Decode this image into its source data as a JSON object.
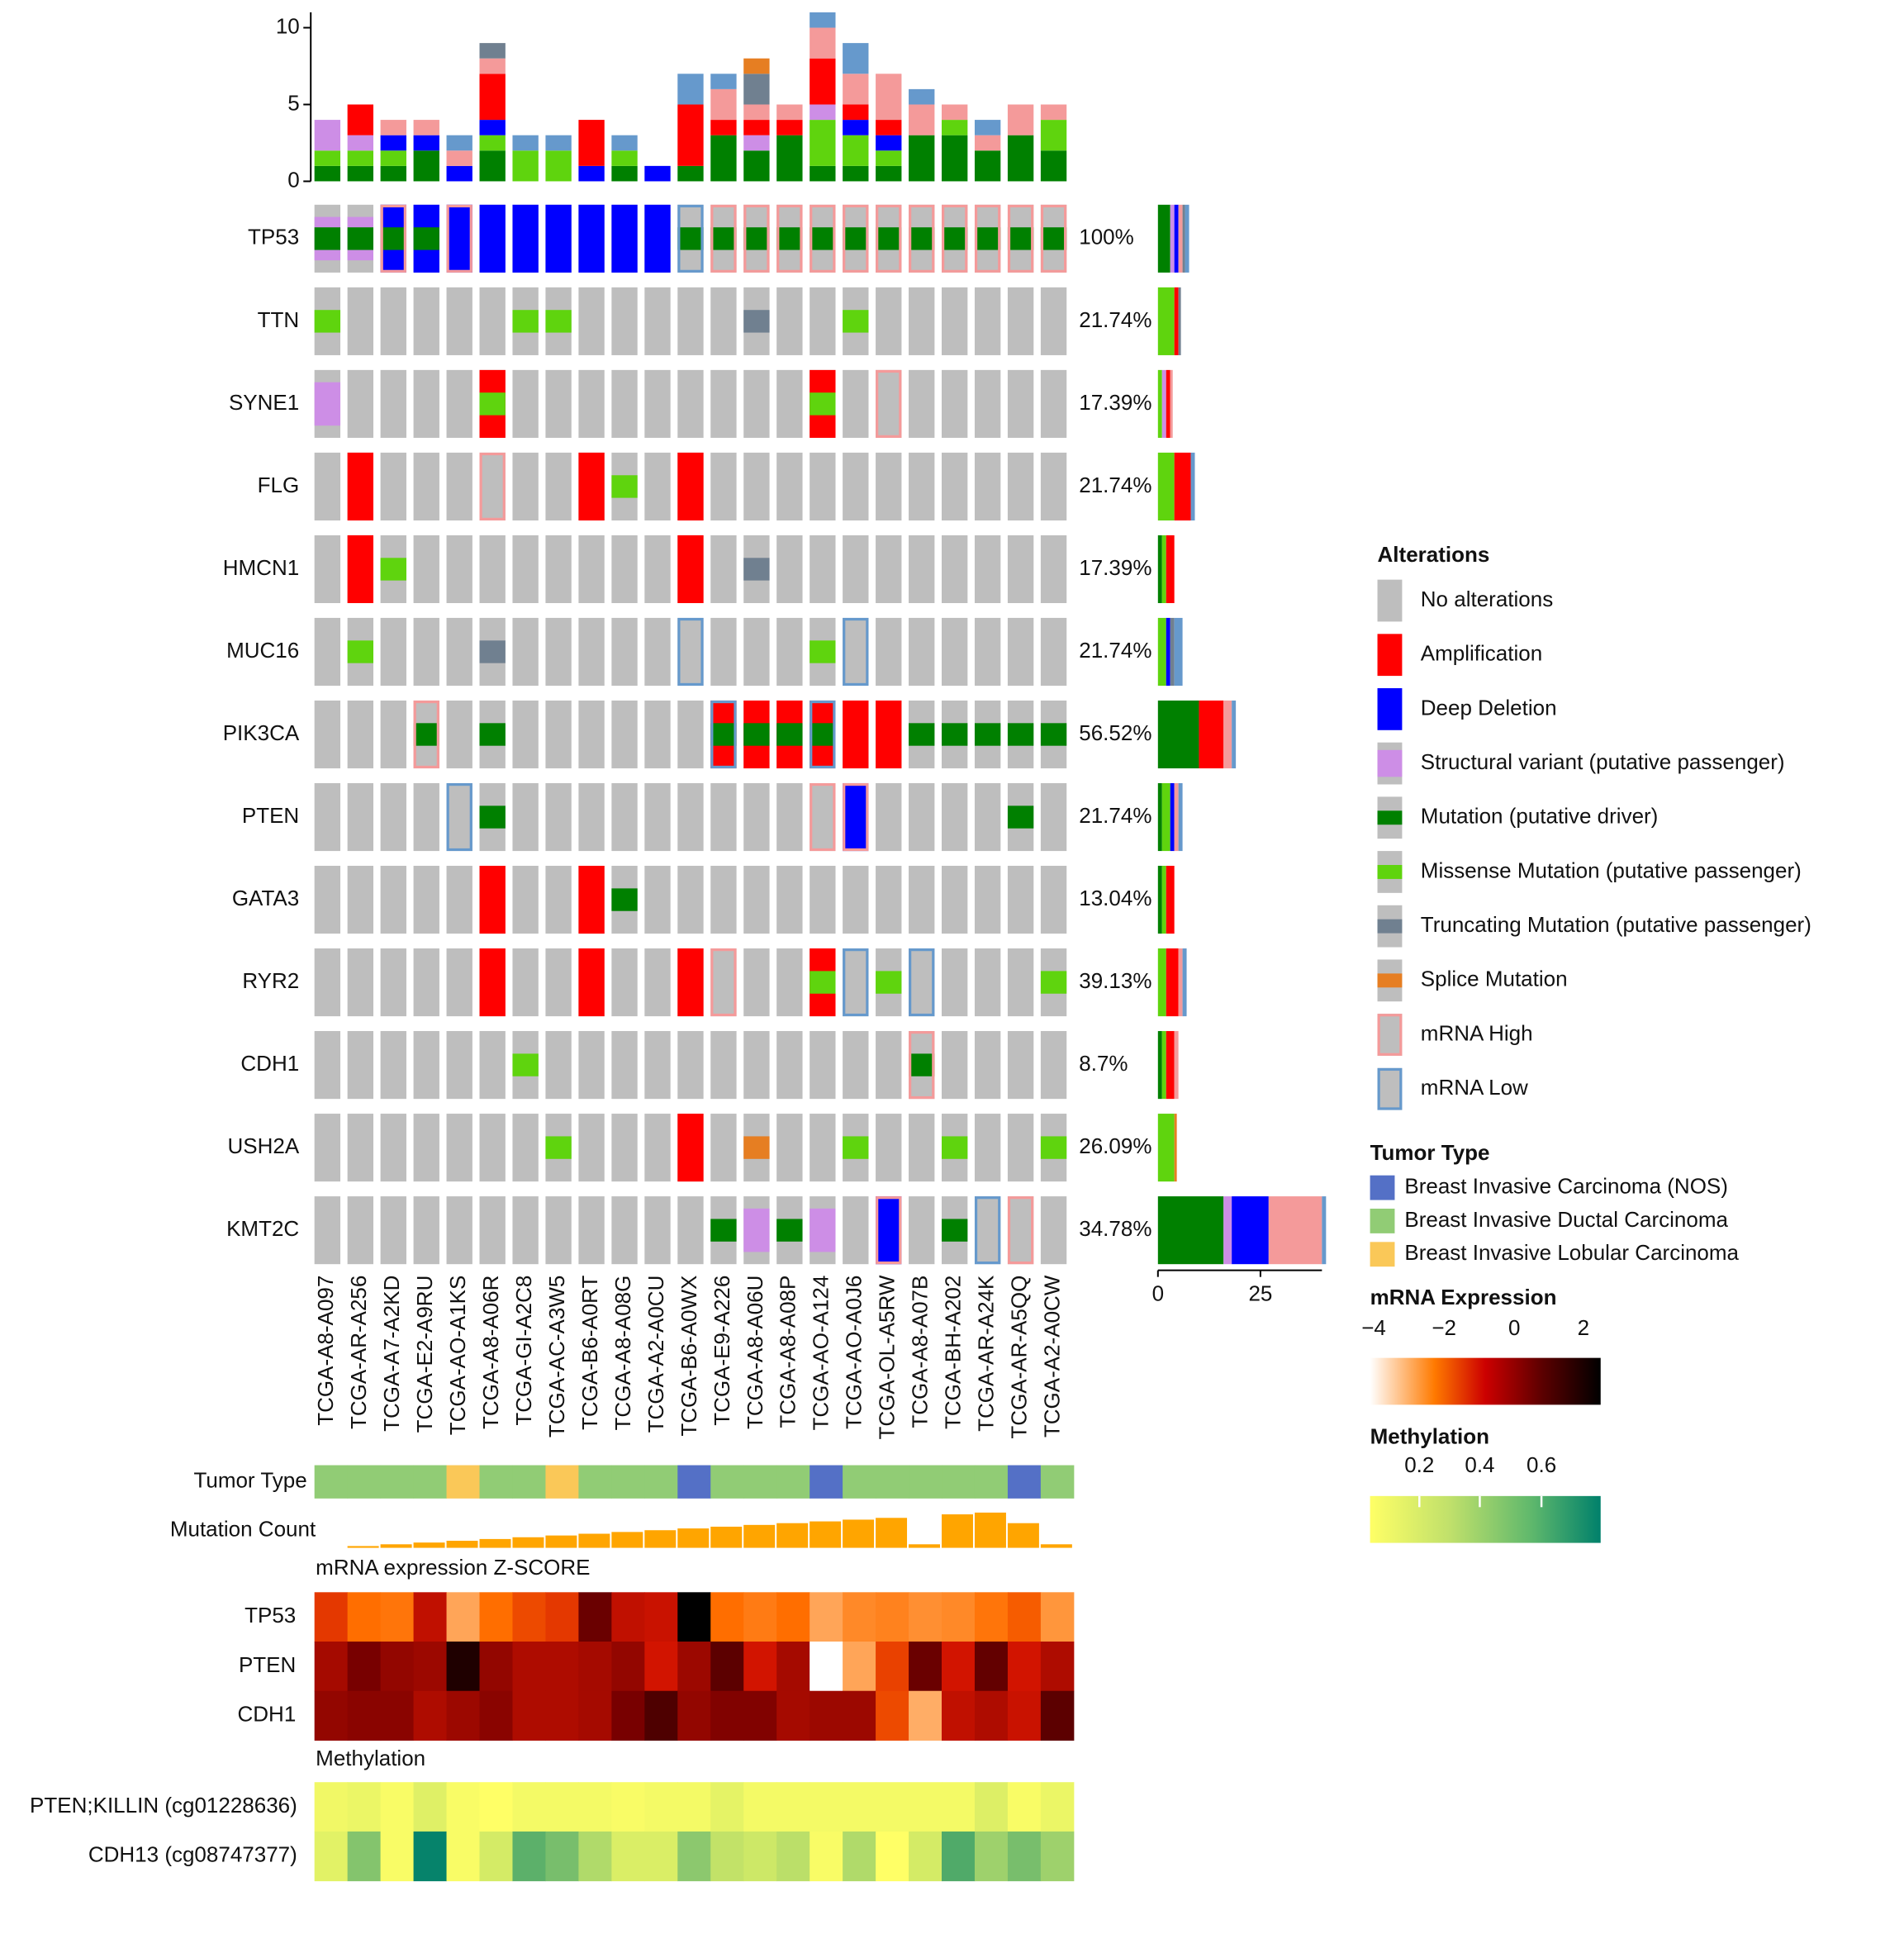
{
  "colors": {
    "none": "#bebebe",
    "amp": "#ff0000",
    "del": "#0000ff",
    "sv": "#cd8ee6",
    "drv": "#008000",
    "mis": "#5fd40e",
    "trunc": "#708090",
    "splice": "#e67e22",
    "high": "#f49a9a",
    "low": "#6699cc",
    "nos": "#5470c6",
    "ductal": "#91cc75",
    "lobular": "#fac858",
    "count": "#ffa500"
  },
  "chart_data": {
    "type": "oncoprint",
    "samples": [
      "TCGA-A8-A097",
      "TCGA-AR-A256",
      "TCGA-A7-A2KD",
      "TCGA-E2-A9RU",
      "TCGA-AO-A1KS",
      "TCGA-A8-A06R",
      "TCGA-GI-A2C8",
      "TCGA-AC-A3W5",
      "TCGA-B6-A0RT",
      "TCGA-A8-A08G",
      "TCGA-A2-A0CU",
      "TCGA-B6-A0WX",
      "TCGA-E9-A226",
      "TCGA-A8-A06U",
      "TCGA-A8-A08P",
      "TCGA-AO-A124",
      "TCGA-AO-A0J6",
      "TCGA-OL-A5RW",
      "TCGA-A8-A07B",
      "TCGA-BH-A202",
      "TCGA-AR-A24K",
      "TCGA-AR-A5QQ",
      "TCGA-A2-A0CW"
    ],
    "genes": [
      {
        "name": "TP53",
        "pct": "100%",
        "cells": [
          {
            "mut": "drv",
            "sv": 1
          },
          {
            "mut": "drv",
            "sv": 1
          },
          {
            "cna": "del",
            "mut": "drv",
            "expr": "high"
          },
          {
            "cna": "del",
            "mut": "drv"
          },
          {
            "cna": "del",
            "expr": "high"
          },
          {
            "cna": "del"
          },
          {
            "cna": "del"
          },
          {
            "cna": "del"
          },
          {
            "cna": "del"
          },
          {
            "cna": "del"
          },
          {
            "cna": "del"
          },
          {
            "mut": "drv",
            "expr": "low"
          },
          {
            "mut": "drv",
            "expr": "high"
          },
          {
            "mut": "drv",
            "expr": "high"
          },
          {
            "mut": "drv",
            "expr": "high"
          },
          {
            "mut": "drv",
            "expr": "high"
          },
          {
            "mut": "drv",
            "expr": "high"
          },
          {
            "mut": "drv",
            "expr": "high"
          },
          {
            "mut": "drv",
            "expr": "high"
          },
          {
            "mut": "drv",
            "expr": "high"
          },
          {
            "mut": "drv",
            "expr": "high"
          },
          {
            "mut": "drv",
            "expr": "high"
          },
          {
            "mut": "drv",
            "expr": "high"
          }
        ]
      },
      {
        "name": "TTN",
        "pct": "21.74%",
        "cells": [
          {
            "mut": "mis"
          },
          {},
          {},
          {},
          {},
          {},
          {
            "mut": "mis"
          },
          {
            "mut": "mis"
          },
          {},
          {},
          {},
          {},
          {},
          {
            "mut": "trunc"
          },
          {},
          {},
          {
            "mut": "mis"
          },
          {},
          {},
          {},
          {},
          {},
          {}
        ]
      },
      {
        "name": "SYNE1",
        "pct": "17.39%",
        "cells": [
          {
            "sv": 1
          },
          {},
          {},
          {},
          {},
          {
            "cna": "amp",
            "mut": "mis"
          },
          {},
          {},
          {},
          {},
          {},
          {},
          {},
          {},
          {},
          {
            "cna": "amp",
            "mut": "mis"
          },
          {},
          {
            "expr": "high"
          },
          {},
          {},
          {},
          {},
          {}
        ]
      },
      {
        "name": "FLG",
        "pct": "21.74%",
        "cells": [
          {},
          {
            "cna": "amp"
          },
          {},
          {},
          {},
          {
            "expr": "high"
          },
          {},
          {},
          {
            "cna": "amp"
          },
          {
            "mut": "mis"
          },
          {},
          {
            "cna": "amp"
          },
          {},
          {},
          {},
          {},
          {},
          {},
          {},
          {},
          {},
          {},
          {}
        ]
      },
      {
        "name": "HMCN1",
        "pct": "17.39%",
        "cells": [
          {},
          {
            "cna": "amp"
          },
          {
            "mut": "mis"
          },
          {},
          {},
          {},
          {},
          {},
          {},
          {},
          {},
          {
            "cna": "amp"
          },
          {},
          {
            "mut": "trunc"
          },
          {},
          {},
          {},
          {},
          {},
          {},
          {},
          {},
          {}
        ]
      },
      {
        "name": "MUC16",
        "pct": "21.74%",
        "cells": [
          {},
          {
            "mut": "mis"
          },
          {},
          {},
          {},
          {
            "mut": "trunc"
          },
          {},
          {},
          {},
          {},
          {},
          {
            "expr": "low"
          },
          {},
          {},
          {},
          {
            "mut": "mis"
          },
          {
            "expr": "low"
          },
          {},
          {},
          {},
          {},
          {},
          {}
        ]
      },
      {
        "name": "PIK3CA",
        "pct": "56.52%",
        "cells": [
          {},
          {},
          {},
          {
            "mut": "drv",
            "expr": "high"
          },
          {},
          {
            "mut": "drv"
          },
          {},
          {},
          {},
          {},
          {},
          {},
          {
            "cna": "amp",
            "mut": "drv",
            "expr": "low"
          },
          {
            "cna": "amp",
            "mut": "drv"
          },
          {
            "cna": "amp",
            "mut": "drv"
          },
          {
            "cna": "amp",
            "mut": "drv",
            "expr": "low"
          },
          {
            "cna": "amp"
          },
          {
            "cna": "amp"
          },
          {
            "mut": "drv"
          },
          {
            "mut": "drv"
          },
          {
            "mut": "drv"
          },
          {
            "mut": "drv"
          },
          {
            "mut": "drv"
          }
        ]
      },
      {
        "name": "PTEN",
        "pct": "21.74%",
        "cells": [
          {},
          {},
          {},
          {},
          {
            "expr": "low"
          },
          {
            "mut": "drv"
          },
          {},
          {},
          {},
          {},
          {},
          {},
          {},
          {},
          {},
          {
            "expr": "high"
          },
          {
            "cna": "del",
            "expr": "high"
          },
          {},
          {},
          {},
          {},
          {
            "mut": "drv"
          },
          {}
        ]
      },
      {
        "name": "GATA3",
        "pct": "13.04%",
        "cells": [
          {},
          {},
          {},
          {},
          {},
          {
            "cna": "amp"
          },
          {},
          {},
          {
            "cna": "amp"
          },
          {
            "mut": "drv"
          },
          {},
          {},
          {},
          {},
          {},
          {},
          {},
          {},
          {},
          {},
          {},
          {},
          {}
        ]
      },
      {
        "name": "RYR2",
        "pct": "39.13%",
        "cells": [
          {},
          {},
          {},
          {},
          {},
          {
            "cna": "amp"
          },
          {},
          {},
          {
            "cna": "amp"
          },
          {},
          {},
          {
            "cna": "amp"
          },
          {
            "expr": "high"
          },
          {},
          {},
          {
            "cna": "amp",
            "mut": "mis"
          },
          {
            "expr": "low"
          },
          {
            "mut": "mis"
          },
          {
            "expr": "low"
          },
          {},
          {},
          {},
          {
            "mut": "mis"
          }
        ]
      },
      {
        "name": "CDH1",
        "pct": "8.7%",
        "cells": [
          {},
          {},
          {},
          {},
          {},
          {},
          {
            "mut": "mis"
          },
          {},
          {},
          {},
          {},
          {},
          {},
          {},
          {},
          {},
          {},
          {},
          {
            "mut": "drv",
            "expr": "high"
          },
          {},
          {},
          {},
          {}
        ]
      },
      {
        "name": "USH2A",
        "pct": "26.09%",
        "cells": [
          {},
          {},
          {},
          {},
          {},
          {},
          {},
          {
            "mut": "mis"
          },
          {},
          {},
          {},
          {
            "cna": "amp"
          },
          {},
          {
            "mut": "splice"
          },
          {},
          {},
          {
            "mut": "mis"
          },
          {},
          {},
          {
            "mut": "mis"
          },
          {},
          {},
          {
            "mut": "mis"
          }
        ]
      },
      {
        "name": "KMT2C",
        "pct": "34.78%",
        "cells": [
          {},
          {},
          {},
          {},
          {},
          {},
          {},
          {},
          {},
          {},
          {},
          {},
          {
            "mut": "drv"
          },
          {
            "sv": 1
          },
          {
            "mut": "drv"
          },
          {
            "sv": 1
          },
          {},
          {
            "cna": "del",
            "expr": "high"
          },
          {},
          {
            "mut": "drv"
          },
          {
            "expr": "low"
          },
          {
            "expr": "high"
          },
          {}
        ]
      }
    ],
    "top_bar": {
      "ylim": [
        0,
        11
      ],
      "yticks": [
        0,
        5,
        10
      ],
      "stack_order": [
        "drv",
        "mis",
        "sv",
        "del",
        "amp",
        "high",
        "trunc",
        "splice",
        "low"
      ],
      "values": [
        {
          "drv": 1,
          "mis": 1,
          "sv": 2
        },
        {
          "drv": 1,
          "mis": 1,
          "sv": 1,
          "amp": 2
        },
        {
          "drv": 1,
          "mis": 1,
          "del": 1,
          "high": 1
        },
        {
          "drv": 2,
          "del": 1,
          "high": 1
        },
        {
          "del": 1,
          "high": 1,
          "low": 1
        },
        {
          "drv": 2,
          "mis": 1,
          "del": 1,
          "amp": 3,
          "high": 1,
          "trunc": 1
        },
        {
          "mis": 2,
          "low": 1
        },
        {
          "mis": 2,
          "low": 1
        },
        {
          "amp": 3,
          "del": 1
        },
        {
          "drv": 1,
          "mis": 1,
          "low": 1
        },
        {
          "del": 1
        },
        {
          "drv": 1,
          "amp": 4,
          "low": 2
        },
        {
          "drv": 3,
          "amp": 1,
          "high": 2,
          "low": 1
        },
        {
          "drv": 2,
          "sv": 1,
          "amp": 1,
          "high": 1,
          "trunc": 2,
          "splice": 1
        },
        {
          "drv": 3,
          "amp": 1,
          "high": 1
        },
        {
          "drv": 1,
          "mis": 3,
          "sv": 1,
          "amp": 3,
          "high": 2,
          "low": 1
        },
        {
          "drv": 1,
          "mis": 2,
          "amp": 1,
          "del": 1,
          "high": 2,
          "low": 2
        },
        {
          "drv": 1,
          "mis": 1,
          "amp": 1,
          "del": 1,
          "high": 3
        },
        {
          "drv": 3,
          "high": 2,
          "low": 1
        },
        {
          "drv": 3,
          "mis": 1,
          "high": 1
        },
        {
          "drv": 2,
          "high": 1,
          "low": 1
        },
        {
          "drv": 3,
          "high": 2
        },
        {
          "drv": 2,
          "mis": 2,
          "high": 1
        }
      ]
    },
    "side_bar": {
      "xlim": [
        0,
        40
      ],
      "xticks": [
        0,
        25
      ],
      "values": [
        {
          "drv": 3,
          "sv": 1,
          "del": 1,
          "high": 1,
          "trunc": 0.6,
          "low": 1
        },
        {
          "mis": 4,
          "amp": 1,
          "trunc": 0.6
        },
        {
          "sv": 1,
          "mis": 1,
          "amp": 1,
          "high": 0.6
        },
        {
          "low": 1,
          "mis": 4,
          "amp": 4
        },
        {
          "drv": 1,
          "mis": 1,
          "amp": 2
        },
        {
          "del": 1,
          "mis": 2,
          "trunc": 1,
          "low": 2
        },
        {
          "drv": 10,
          "high": 2,
          "low": 1,
          "amp": 6
        },
        {
          "mis": 2,
          "high": 1,
          "low": 1,
          "del": 1,
          "drv": 1
        },
        {
          "mis": 1,
          "amp": 2,
          "drv": 1
        },
        {
          "mis": 2,
          "high": 1,
          "low": 1,
          "amp": 3
        },
        {
          "mis": 1,
          "high": 1,
          "drv": 1,
          "amp": 2
        },
        {
          "mis": 4,
          "splice": 0.6
        },
        {
          "drv": 16,
          "sv": 2,
          "del": 9,
          "high": 13,
          "low": 1
        }
      ]
    },
    "tracks": {
      "tumor_type_label": "Tumor Type",
      "tumor_type": [
        "ductal",
        "ductal",
        "ductal",
        "ductal",
        "lobular",
        "ductal",
        "ductal",
        "lobular",
        "ductal",
        "ductal",
        "ductal",
        "nos",
        "ductal",
        "ductal",
        "ductal",
        "nos",
        "ductal",
        "ductal",
        "ductal",
        "ductal",
        "ductal",
        "nos",
        "ductal"
      ],
      "mutation_count_label": "Mutation Count",
      "mutation_count": [
        0,
        1,
        2,
        3,
        4,
        5,
        6,
        7,
        8,
        9,
        10,
        11,
        12,
        13,
        14,
        15,
        16,
        17,
        2,
        19,
        20,
        14,
        2
      ],
      "mutation_count_max": 21
    },
    "mrna": {
      "title": "mRNA expression Z-SCORE",
      "genes": [
        "TP53",
        "PTEN",
        "CDH1"
      ],
      "z": [
        [
          -1.4,
          -2.0,
          -2.1,
          -0.8,
          -2.8,
          -2.0,
          -1.6,
          -1.4,
          0.2,
          -0.8,
          -0.9,
          2.6,
          -2.0,
          -2.2,
          -2.0,
          -2.8,
          -2.4,
          -2.3,
          -2.5,
          -2.4,
          -2.1,
          -1.8,
          -2.6
        ],
        [
          -0.5,
          0.0,
          -0.3,
          -0.4,
          1.6,
          -0.3,
          -0.6,
          -0.6,
          -0.5,
          -0.3,
          -1.0,
          -0.4,
          0.4,
          -1.0,
          -0.5,
          -4.0,
          -2.8,
          -1.5,
          0.2,
          -1.0,
          0.3,
          -1.0,
          -0.6
        ],
        [
          -0.3,
          -0.2,
          -0.2,
          -0.6,
          -0.4,
          -0.2,
          -0.6,
          -0.6,
          -0.5,
          0.0,
          0.6,
          -0.3,
          -0.1,
          -0.1,
          -0.5,
          -0.4,
          -0.4,
          -1.6,
          -2.9,
          -0.8,
          -0.6,
          -0.9,
          0.4
        ]
      ]
    },
    "methylation": {
      "title": "Methylation",
      "probes": [
        "PTEN;KILLIN (cg01228636)",
        "CDH13 (cg08747377)"
      ],
      "beta": [
        [
          0.1,
          0.12,
          0.07,
          0.16,
          0.07,
          0.05,
          0.09,
          0.09,
          0.09,
          0.07,
          0.09,
          0.09,
          0.14,
          0.09,
          0.09,
          0.09,
          0.09,
          0.09,
          0.09,
          0.09,
          0.17,
          0.07,
          0.12
        ],
        [
          0.15,
          0.42,
          0.07,
          0.78,
          0.07,
          0.2,
          0.52,
          0.45,
          0.3,
          0.18,
          0.18,
          0.4,
          0.25,
          0.22,
          0.27,
          0.07,
          0.3,
          0.05,
          0.2,
          0.55,
          0.35,
          0.45,
          0.35
        ]
      ]
    },
    "legend": {
      "alterations_title": "Alterations",
      "alterations": [
        {
          "key": "none",
          "label": "No alterations"
        },
        {
          "key": "amp",
          "label": "Amplification"
        },
        {
          "key": "del",
          "label": "Deep Deletion"
        },
        {
          "key": "sv",
          "label": "Structural variant (putative passenger)"
        },
        {
          "key": "drv",
          "label": "Mutation (putative driver)"
        },
        {
          "key": "mis",
          "label": "Missense Mutation (putative passenger)"
        },
        {
          "key": "trunc",
          "label": "Truncating Mutation (putative passenger)"
        },
        {
          "key": "splice",
          "label": "Splice Mutation"
        },
        {
          "key": "high",
          "label": "mRNA High"
        },
        {
          "key": "low",
          "label": "mRNA Low"
        }
      ],
      "tumor_type_title": "Tumor Type",
      "tumor_types": [
        {
          "key": "nos",
          "label": "Breast Invasive Carcinoma (NOS)"
        },
        {
          "key": "ductal",
          "label": "Breast Invasive Ductal Carcinoma"
        },
        {
          "key": "lobular",
          "label": "Breast Invasive Lobular Carcinoma"
        }
      ],
      "mrna_title": "mRNA Expression",
      "mrna_ticks": [
        "−4",
        "−2",
        "0",
        "2"
      ],
      "meth_title": "Methylation",
      "meth_ticks": [
        "0.2",
        "0.4",
        "0.6"
      ]
    }
  }
}
